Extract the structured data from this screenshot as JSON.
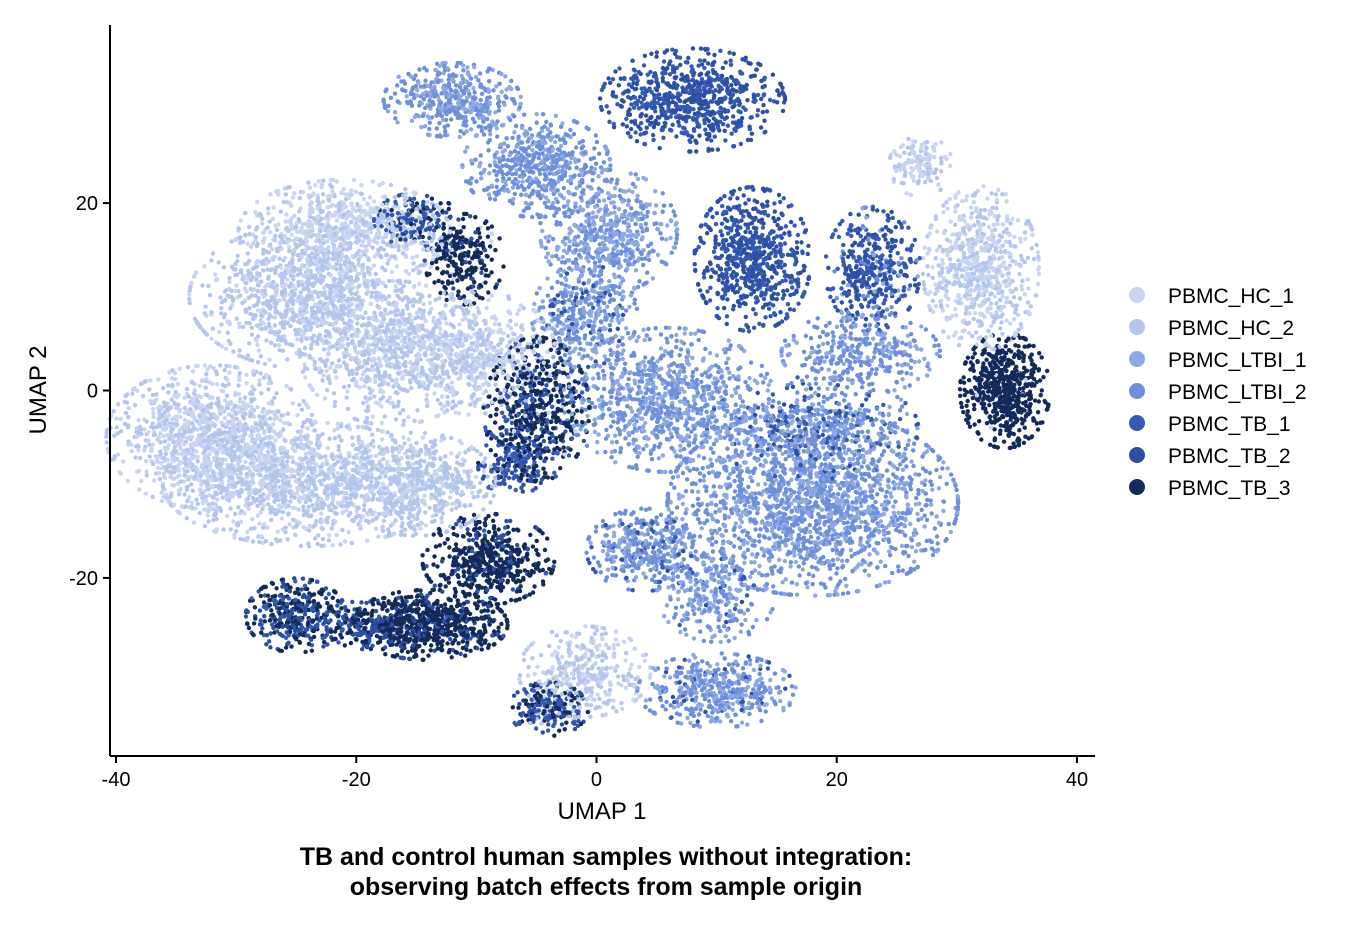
{
  "chart_data": {
    "type": "scatter",
    "title": "TB and control human samples without integration:",
    "subtitle": "observing batch effects from sample origin",
    "xlabel": "UMAP 1",
    "ylabel": "UMAP 2",
    "xlim": [
      -40.5,
      41.5
    ],
    "ylim": [
      -39,
      39
    ],
    "xticks": [
      -40,
      -20,
      0,
      20,
      40
    ],
    "yticks": [
      -20,
      0,
      20
    ],
    "grid": false,
    "legend_position": "right",
    "series": [
      {
        "name": "PBMC_HC_1",
        "color": "#c8d4f0"
      },
      {
        "name": "PBMC_HC_2",
        "color": "#b4c5ec"
      },
      {
        "name": "PBMC_LTBI_1",
        "color": "#8ea8e3"
      },
      {
        "name": "PBMC_LTBI_2",
        "color": "#6e8fdb"
      },
      {
        "name": "PBMC_TB_1",
        "color": "#3559b5"
      },
      {
        "name": "PBMC_TB_2",
        "color": "#2c4fa3"
      },
      {
        "name": "PBMC_TB_3",
        "color": "#132a5a"
      }
    ],
    "clusters": [
      {
        "x": -32,
        "y": -5,
        "sx": 4.0,
        "sy": 3.5,
        "n": 1100,
        "mix": [
          0.55,
          0.45,
          0,
          0,
          0,
          0,
          0
        ]
      },
      {
        "x": -24,
        "y": -10,
        "sx": 5.5,
        "sy": 3.0,
        "n": 1200,
        "mix": [
          0.35,
          0.65,
          0,
          0,
          0,
          0,
          0
        ]
      },
      {
        "x": -15,
        "y": -10,
        "sx": 3.0,
        "sy": 2.5,
        "n": 500,
        "mix": [
          0.2,
          0.8,
          0,
          0,
          0,
          0,
          0
        ]
      },
      {
        "x": -24,
        "y": 10,
        "sx": 4.5,
        "sy": 3.5,
        "n": 1000,
        "mix": [
          0.3,
          0.7,
          0,
          0,
          0,
          0,
          0
        ]
      },
      {
        "x": -21,
        "y": 17,
        "sx": 4.0,
        "sy": 2.5,
        "n": 700,
        "mix": [
          0.65,
          0.35,
          0,
          0,
          0,
          0,
          0
        ]
      },
      {
        "x": -17,
        "y": 4,
        "sx": 3.5,
        "sy": 3.5,
        "n": 700,
        "mix": [
          0.45,
          0.55,
          0,
          0,
          0,
          0,
          0
        ]
      },
      {
        "x": -10,
        "y": 4,
        "sx": 3.0,
        "sy": 3.0,
        "n": 500,
        "mix": [
          0.5,
          0.5,
          0,
          0,
          0,
          0,
          0
        ]
      },
      {
        "x": -15,
        "y": 18,
        "sx": 1.6,
        "sy": 1.4,
        "n": 160,
        "mix": [
          0,
          0.1,
          0,
          0,
          0.4,
          0.3,
          0.2
        ]
      },
      {
        "x": -11,
        "y": 14,
        "sx": 1.5,
        "sy": 2.2,
        "n": 240,
        "mix": [
          0.05,
          0,
          0,
          0,
          0,
          0.15,
          0.8
        ]
      },
      {
        "x": -5,
        "y": -2,
        "sx": 2.0,
        "sy": 3.5,
        "n": 560,
        "mix": [
          0.03,
          0,
          0,
          0,
          0.2,
          0.1,
          0.67
        ]
      },
      {
        "x": -7,
        "y": -8,
        "sx": 1.3,
        "sy": 1.5,
        "n": 160,
        "mix": [
          0,
          0,
          0,
          0.05,
          0.4,
          0.35,
          0.2
        ]
      },
      {
        "x": -9,
        "y": -18,
        "sx": 2.5,
        "sy": 2.2,
        "n": 500,
        "mix": [
          0,
          0,
          0,
          0,
          0.05,
          0.1,
          0.85
        ]
      },
      {
        "x": -14,
        "y": -25,
        "sx": 3.0,
        "sy": 1.7,
        "n": 700,
        "mix": [
          0,
          0,
          0,
          0,
          0.05,
          0.15,
          0.8
        ]
      },
      {
        "x": -25,
        "y": -24,
        "sx": 1.9,
        "sy": 1.8,
        "n": 380,
        "mix": [
          0,
          0,
          0,
          0,
          0.15,
          0.4,
          0.45
        ]
      },
      {
        "x": -19,
        "y": -25,
        "sx": 1.6,
        "sy": 1.2,
        "n": 160,
        "mix": [
          0,
          0,
          0,
          0,
          0.15,
          0.45,
          0.4
        ]
      },
      {
        "x": -12,
        "y": 31,
        "sx": 2.6,
        "sy": 1.8,
        "n": 420,
        "mix": [
          0,
          0,
          0.4,
          0.6,
          0,
          0,
          0
        ]
      },
      {
        "x": -5,
        "y": 24,
        "sx": 2.8,
        "sy": 2.5,
        "n": 500,
        "mix": [
          0,
          0,
          0.3,
          0.7,
          0,
          0,
          0
        ]
      },
      {
        "x": 1,
        "y": 17,
        "sx": 2.6,
        "sy": 3.0,
        "n": 550,
        "mix": [
          0,
          0,
          0.55,
          0.45,
          0,
          0,
          0
        ]
      },
      {
        "x": -1,
        "y": 8,
        "sx": 2.0,
        "sy": 2.5,
        "n": 380,
        "mix": [
          0,
          0,
          0.4,
          0.45,
          0.05,
          0.1,
          0
        ]
      },
      {
        "x": 6,
        "y": -1,
        "sx": 4.0,
        "sy": 3.5,
        "n": 900,
        "mix": [
          0,
          0,
          0.45,
          0.55,
          0,
          0,
          0
        ]
      },
      {
        "x": 18,
        "y": -12,
        "sx": 5.5,
        "sy": 4.5,
        "n": 1800,
        "mix": [
          0,
          0,
          0.35,
          0.65,
          0,
          0,
          0
        ]
      },
      {
        "x": 18,
        "y": -4,
        "sx": 4.0,
        "sy": 2.5,
        "n": 500,
        "mix": [
          0,
          0,
          0.2,
          0.45,
          0.2,
          0.15,
          0
        ]
      },
      {
        "x": 4,
        "y": -17,
        "sx": 2.2,
        "sy": 2.0,
        "n": 380,
        "mix": [
          0,
          0,
          0.25,
          0.6,
          0.1,
          0.05,
          0
        ]
      },
      {
        "x": 8,
        "y": 31,
        "sx": 3.5,
        "sy": 2.5,
        "n": 700,
        "mix": [
          0,
          0,
          0,
          0,
          0.5,
          0.5,
          0
        ]
      },
      {
        "x": 13,
        "y": 14,
        "sx": 2.2,
        "sy": 3.5,
        "n": 650,
        "mix": [
          0,
          0,
          0,
          0,
          0.5,
          0.5,
          0
        ]
      },
      {
        "x": 23,
        "y": 13,
        "sx": 1.8,
        "sy": 3.0,
        "n": 380,
        "mix": [
          0,
          0,
          0.05,
          0.1,
          0.45,
          0.4,
          0
        ]
      },
      {
        "x": 22,
        "y": 4,
        "sx": 3.0,
        "sy": 2.0,
        "n": 320,
        "mix": [
          0,
          0,
          0.3,
          0.7,
          0,
          0,
          0
        ]
      },
      {
        "x": 27,
        "y": 24,
        "sx": 1.2,
        "sy": 1.5,
        "n": 130,
        "mix": [
          0.55,
          0.45,
          0,
          0,
          0,
          0,
          0
        ]
      },
      {
        "x": 32,
        "y": 13,
        "sx": 2.2,
        "sy": 4.0,
        "n": 650,
        "mix": [
          0.5,
          0.5,
          0,
          0,
          0,
          0,
          0
        ]
      },
      {
        "x": 34,
        "y": 0,
        "sx": 1.7,
        "sy": 2.8,
        "n": 560,
        "mix": [
          0.02,
          0,
          0,
          0,
          0,
          0,
          0.98
        ]
      },
      {
        "x": 10,
        "y": -22,
        "sx": 2.2,
        "sy": 2.2,
        "n": 260,
        "mix": [
          0,
          0,
          0.4,
          0.5,
          0.05,
          0.05,
          0
        ]
      },
      {
        "x": 10,
        "y": -32,
        "sx": 3.0,
        "sy": 1.8,
        "n": 450,
        "mix": [
          0,
          0,
          0.4,
          0.5,
          0.05,
          0.05,
          0
        ]
      },
      {
        "x": -1,
        "y": -30,
        "sx": 2.5,
        "sy": 2.2,
        "n": 330,
        "mix": [
          0.5,
          0.5,
          0,
          0,
          0,
          0,
          0
        ]
      },
      {
        "x": -4,
        "y": -34,
        "sx": 1.5,
        "sy": 1.3,
        "n": 210,
        "mix": [
          0,
          0.05,
          0,
          0,
          0.3,
          0.3,
          0.35
        ]
      }
    ]
  }
}
